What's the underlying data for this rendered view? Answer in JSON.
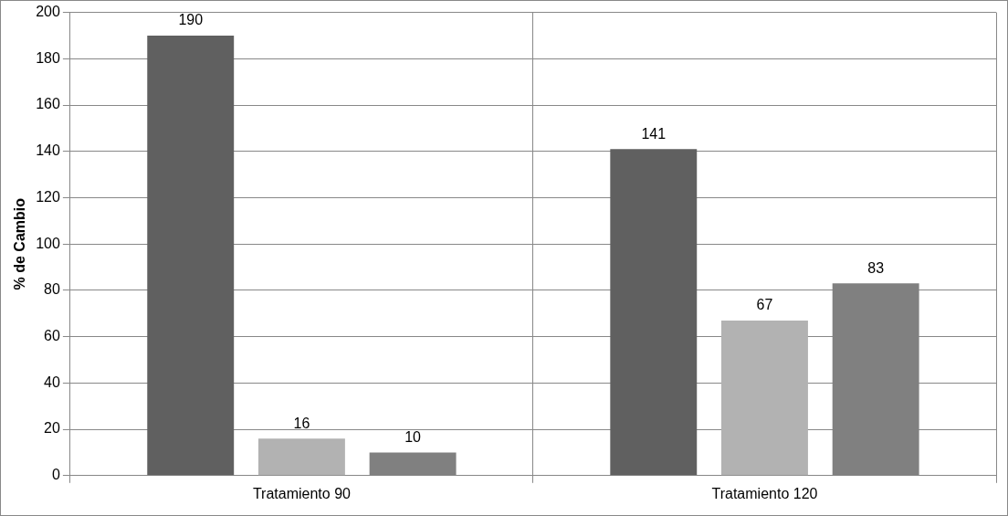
{
  "chart_data": {
    "type": "bar",
    "ylabel": "% de Cambio",
    "categories": [
      "Tratamiento 90",
      "Tratamiento 120"
    ],
    "series": [
      {
        "color": "#606060",
        "values": [
          190,
          141
        ]
      },
      {
        "color": "#b2b2b2",
        "values": [
          16,
          67
        ]
      },
      {
        "color": "#808080",
        "values": [
          10,
          83
        ]
      }
    ],
    "ylim": [
      0,
      200
    ],
    "yticks": [
      0,
      20,
      40,
      60,
      80,
      100,
      120,
      140,
      160,
      180,
      200
    ],
    "grid": true,
    "legend": false,
    "data_labels": true
  }
}
